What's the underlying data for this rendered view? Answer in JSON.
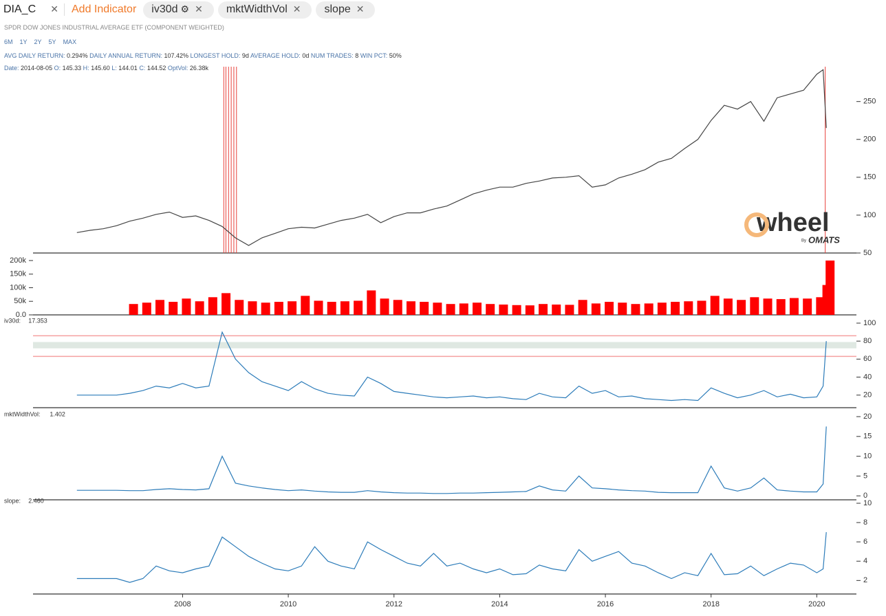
{
  "ui": {
    "ticker": "DIA_C",
    "add_indicator": "Add Indicator",
    "indicators": [
      "iv30d",
      "mktWidthVol",
      "slope"
    ],
    "subtitle": "SPDR DOW JONES INDUSTRIAL AVERAGE ETF (COMPONENT WEIGHTED)",
    "ranges": [
      "6M",
      "1Y",
      "2Y",
      "5Y",
      "MAX"
    ],
    "stats": [
      {
        "label": "AVG DAILY RETURN:",
        "value": "0.294%"
      },
      {
        "label": "DAILY ANNUAL RETURN:",
        "value": "107.42%"
      },
      {
        "label": "LONGEST HOLD:",
        "value": "9d"
      },
      {
        "label": "AVERAGE HOLD:",
        "value": "0d"
      },
      {
        "label": "NUM TRADES:",
        "value": "8"
      },
      {
        "label": "WIN PCT:",
        "value": "50%"
      }
    ],
    "info": [
      {
        "label": "Date:",
        "value": "2014-08-05"
      },
      {
        "label": "O:",
        "value": "145.33"
      },
      {
        "label": "H:",
        "value": "145.60"
      },
      {
        "label": "L:",
        "value": "144.01"
      },
      {
        "label": "C:",
        "value": "144.52"
      },
      {
        "label": "OptVol:",
        "value": "26.38k"
      }
    ],
    "watermark": {
      "text": "wheel",
      "by": "By",
      "brand": "OMATS"
    }
  },
  "chart_data": [
    {
      "type": "line",
      "color": "#444444",
      "xlim": [
        2005.17,
        2020.75
      ],
      "ylim": [
        50,
        296
      ],
      "yticks": [
        50,
        100,
        150,
        200,
        250
      ],
      "signal_color": "#e8403a",
      "signals": [
        2008.78,
        2008.82,
        2008.87,
        2008.92,
        2008.97,
        2009.02,
        2020.16
      ],
      "x": [
        2006,
        2006.25,
        2006.5,
        2006.75,
        2007,
        2007.25,
        2007.5,
        2007.75,
        2008,
        2008.25,
        2008.5,
        2008.75,
        2009,
        2009.25,
        2009.5,
        2009.75,
        2010,
        2010.25,
        2010.5,
        2010.75,
        2011,
        2011.25,
        2011.5,
        2011.75,
        2012,
        2012.25,
        2012.5,
        2012.75,
        2013,
        2013.25,
        2013.5,
        2013.75,
        2014,
        2014.25,
        2014.5,
        2014.75,
        2015,
        2015.25,
        2015.5,
        2015.75,
        2016,
        2016.25,
        2016.5,
        2016.75,
        2017,
        2017.25,
        2017.5,
        2017.75,
        2018,
        2018.25,
        2018.5,
        2018.75,
        2019,
        2019.25,
        2019.5,
        2019.75,
        2020,
        2020.12,
        2020.18
      ],
      "values": [
        77,
        80,
        82,
        86,
        92,
        96,
        101,
        104,
        97,
        99,
        93,
        85,
        70,
        60,
        70,
        76,
        82,
        84,
        83,
        88,
        93,
        96,
        101,
        90,
        98,
        103,
        103,
        108,
        112,
        120,
        128,
        133,
        137,
        137,
        142,
        145,
        149,
        150,
        152,
        137,
        140,
        149,
        154,
        160,
        170,
        175,
        188,
        200,
        225,
        245,
        240,
        250,
        224,
        255,
        260,
        265,
        286,
        292,
        215
      ]
    },
    {
      "type": "bar",
      "color": "#ff0000",
      "xlim": [
        2005.17,
        2020.75
      ],
      "ylim": [
        0,
        210000
      ],
      "yticks": [
        {
          "value": 0,
          "label": "0.0"
        },
        {
          "value": 50000,
          "label": "50k"
        },
        {
          "value": 100000,
          "label": "100k"
        },
        {
          "value": 150000,
          "label": "150k"
        },
        {
          "value": 200000,
          "label": "200k"
        }
      ],
      "x": [
        2006,
        2006.25,
        2006.5,
        2006.75,
        2007,
        2007.25,
        2007.5,
        2007.75,
        2008,
        2008.25,
        2008.5,
        2008.75,
        2009,
        2009.25,
        2009.5,
        2009.75,
        2010,
        2010.25,
        2010.5,
        2010.75,
        2011,
        2011.25,
        2011.5,
        2011.75,
        2012,
        2012.25,
        2012.5,
        2012.75,
        2013,
        2013.25,
        2013.5,
        2013.75,
        2014,
        2014.25,
        2014.5,
        2014.75,
        2015,
        2015.25,
        2015.5,
        2015.75,
        2016,
        2016.25,
        2016.5,
        2016.75,
        2017,
        2017.25,
        2017.5,
        2017.75,
        2018,
        2018.25,
        2018.5,
        2018.75,
        2019,
        2019.25,
        2019.5,
        2019.75,
        2020,
        2020.12,
        2020.18
      ],
      "values": [
        null,
        null,
        null,
        null,
        40000,
        45000,
        55000,
        48000,
        60000,
        50000,
        65000,
        80000,
        55000,
        50000,
        45000,
        48000,
        50000,
        70000,
        52000,
        48000,
        50000,
        52000,
        90000,
        60000,
        55000,
        50000,
        48000,
        45000,
        40000,
        42000,
        45000,
        40000,
        38000,
        36000,
        35000,
        40000,
        38000,
        37000,
        55000,
        42000,
        48000,
        45000,
        40000,
        42000,
        45000,
        48000,
        50000,
        52000,
        70000,
        60000,
        55000,
        65000,
        60000,
        58000,
        62000,
        60000,
        65000,
        110000,
        200000
      ]
    },
    {
      "type": "line",
      "label": "iv30d:",
      "label_value": "17.353",
      "color": "#2b7bb9",
      "xlim": [
        2005.17,
        2020.75
      ],
      "ylim": [
        6,
        100
      ],
      "yticks": [
        20,
        40,
        60,
        80,
        100
      ],
      "hlines": [
        86,
        63
      ],
      "hline_color": "#f5a0a0",
      "band": [
        72,
        79
      ],
      "band_color": "#dfe8e2",
      "x": [
        2006,
        2006.25,
        2006.5,
        2006.75,
        2007,
        2007.25,
        2007.5,
        2007.75,
        2008,
        2008.25,
        2008.5,
        2008.75,
        2009,
        2009.25,
        2009.5,
        2009.75,
        2010,
        2010.25,
        2010.5,
        2010.75,
        2011,
        2011.25,
        2011.5,
        2011.75,
        2012,
        2012.25,
        2012.5,
        2012.75,
        2013,
        2013.25,
        2013.5,
        2013.75,
        2014,
        2014.25,
        2014.5,
        2014.75,
        2015,
        2015.25,
        2015.5,
        2015.75,
        2016,
        2016.25,
        2016.5,
        2016.75,
        2017,
        2017.25,
        2017.5,
        2017.75,
        2018,
        2018.25,
        2018.5,
        2018.75,
        2019,
        2019.25,
        2019.5,
        2019.75,
        2020,
        2020.12,
        2020.18
      ],
      "values": [
        20,
        20,
        20,
        20,
        22,
        25,
        30,
        28,
        33,
        28,
        30,
        90,
        60,
        45,
        35,
        30,
        25,
        35,
        27,
        22,
        20,
        19,
        40,
        33,
        24,
        22,
        20,
        18,
        17,
        18,
        19,
        17,
        18,
        16,
        15,
        22,
        18,
        17,
        30,
        22,
        25,
        18,
        19,
        16,
        15,
        14,
        15,
        14,
        28,
        22,
        17,
        20,
        25,
        18,
        21,
        17,
        18,
        30,
        80
      ]
    },
    {
      "type": "line",
      "label": "mktWidthVol:",
      "label_value": "1.402",
      "color": "#2b7bb9",
      "xlim": [
        2005.17,
        2020.75
      ],
      "ylim": [
        -1,
        20
      ],
      "yticks": [
        0,
        5,
        10,
        15,
        20
      ],
      "x": [
        2006,
        2006.25,
        2006.5,
        2006.75,
        2007,
        2007.25,
        2007.5,
        2007.75,
        2008,
        2008.25,
        2008.5,
        2008.75,
        2009,
        2009.25,
        2009.5,
        2009.75,
        2010,
        2010.25,
        2010.5,
        2010.75,
        2011,
        2011.25,
        2011.5,
        2011.75,
        2012,
        2012.25,
        2012.5,
        2012.75,
        2013,
        2013.25,
        2013.5,
        2013.75,
        2014,
        2014.25,
        2014.5,
        2014.75,
        2015,
        2015.25,
        2015.5,
        2015.75,
        2016,
        2016.25,
        2016.5,
        2016.75,
        2017,
        2017.25,
        2017.5,
        2017.75,
        2018,
        2018.25,
        2018.5,
        2018.75,
        2019,
        2019.25,
        2019.5,
        2019.75,
        2020,
        2020.12,
        2020.18
      ],
      "values": [
        1.4,
        1.4,
        1.4,
        1.4,
        1.3,
        1.3,
        1.6,
        1.8,
        1.6,
        1.5,
        1.8,
        10,
        3.2,
        2.5,
        2,
        1.6,
        1.3,
        1.5,
        1.2,
        1.0,
        0.9,
        0.9,
        1.3,
        1.0,
        0.8,
        0.7,
        0.7,
        0.6,
        0.6,
        0.7,
        0.7,
        0.8,
        0.9,
        1.0,
        1.1,
        2.5,
        1.5,
        1.2,
        5,
        2.0,
        1.8,
        1.5,
        1.3,
        1.2,
        0.9,
        0.8,
        0.8,
        0.8,
        7.5,
        2.0,
        1.2,
        2.0,
        4.5,
        1.5,
        1.2,
        1.0,
        1.0,
        3.0,
        17.5
      ]
    },
    {
      "type": "line",
      "label": "slope:",
      "label_value": "2.460",
      "color": "#2b7bb9",
      "xlim": [
        2005.17,
        2020.75
      ],
      "ylim": [
        0.6,
        10
      ],
      "yticks": [
        2,
        4,
        6,
        8,
        10
      ],
      "xticks": [
        2008,
        2010,
        2012,
        2014,
        2016,
        2018,
        2020
      ],
      "x": [
        2006,
        2006.25,
        2006.5,
        2006.75,
        2007,
        2007.25,
        2007.5,
        2007.75,
        2008,
        2008.25,
        2008.5,
        2008.75,
        2009,
        2009.25,
        2009.5,
        2009.75,
        2010,
        2010.25,
        2010.5,
        2010.75,
        2011,
        2011.25,
        2011.5,
        2011.75,
        2012,
        2012.25,
        2012.5,
        2012.75,
        2013,
        2013.25,
        2013.5,
        2013.75,
        2014,
        2014.25,
        2014.5,
        2014.75,
        2015,
        2015.25,
        2015.5,
        2015.75,
        2016,
        2016.25,
        2016.5,
        2016.75,
        2017,
        2017.25,
        2017.5,
        2017.75,
        2018,
        2018.25,
        2018.5,
        2018.75,
        2019,
        2019.25,
        2019.5,
        2019.75,
        2020,
        2020.12,
        2020.18
      ],
      "values": [
        2.2,
        2.2,
        2.2,
        2.2,
        1.8,
        2.2,
        3.5,
        3.0,
        2.8,
        3.2,
        3.5,
        6.5,
        5.5,
        4.5,
        3.8,
        3.2,
        3.0,
        3.5,
        5.5,
        4.0,
        3.5,
        3.2,
        6.0,
        5.2,
        4.5,
        3.8,
        3.5,
        4.8,
        3.5,
        3.8,
        3.2,
        2.8,
        3.2,
        2.6,
        2.7,
        3.6,
        3.2,
        3.0,
        5.2,
        4.0,
        4.5,
        5.0,
        3.8,
        3.5,
        2.8,
        2.2,
        2.8,
        2.5,
        4.8,
        2.6,
        2.7,
        3.5,
        2.5,
        3.2,
        3.8,
        3.6,
        2.8,
        3.2,
        7.0
      ]
    }
  ]
}
